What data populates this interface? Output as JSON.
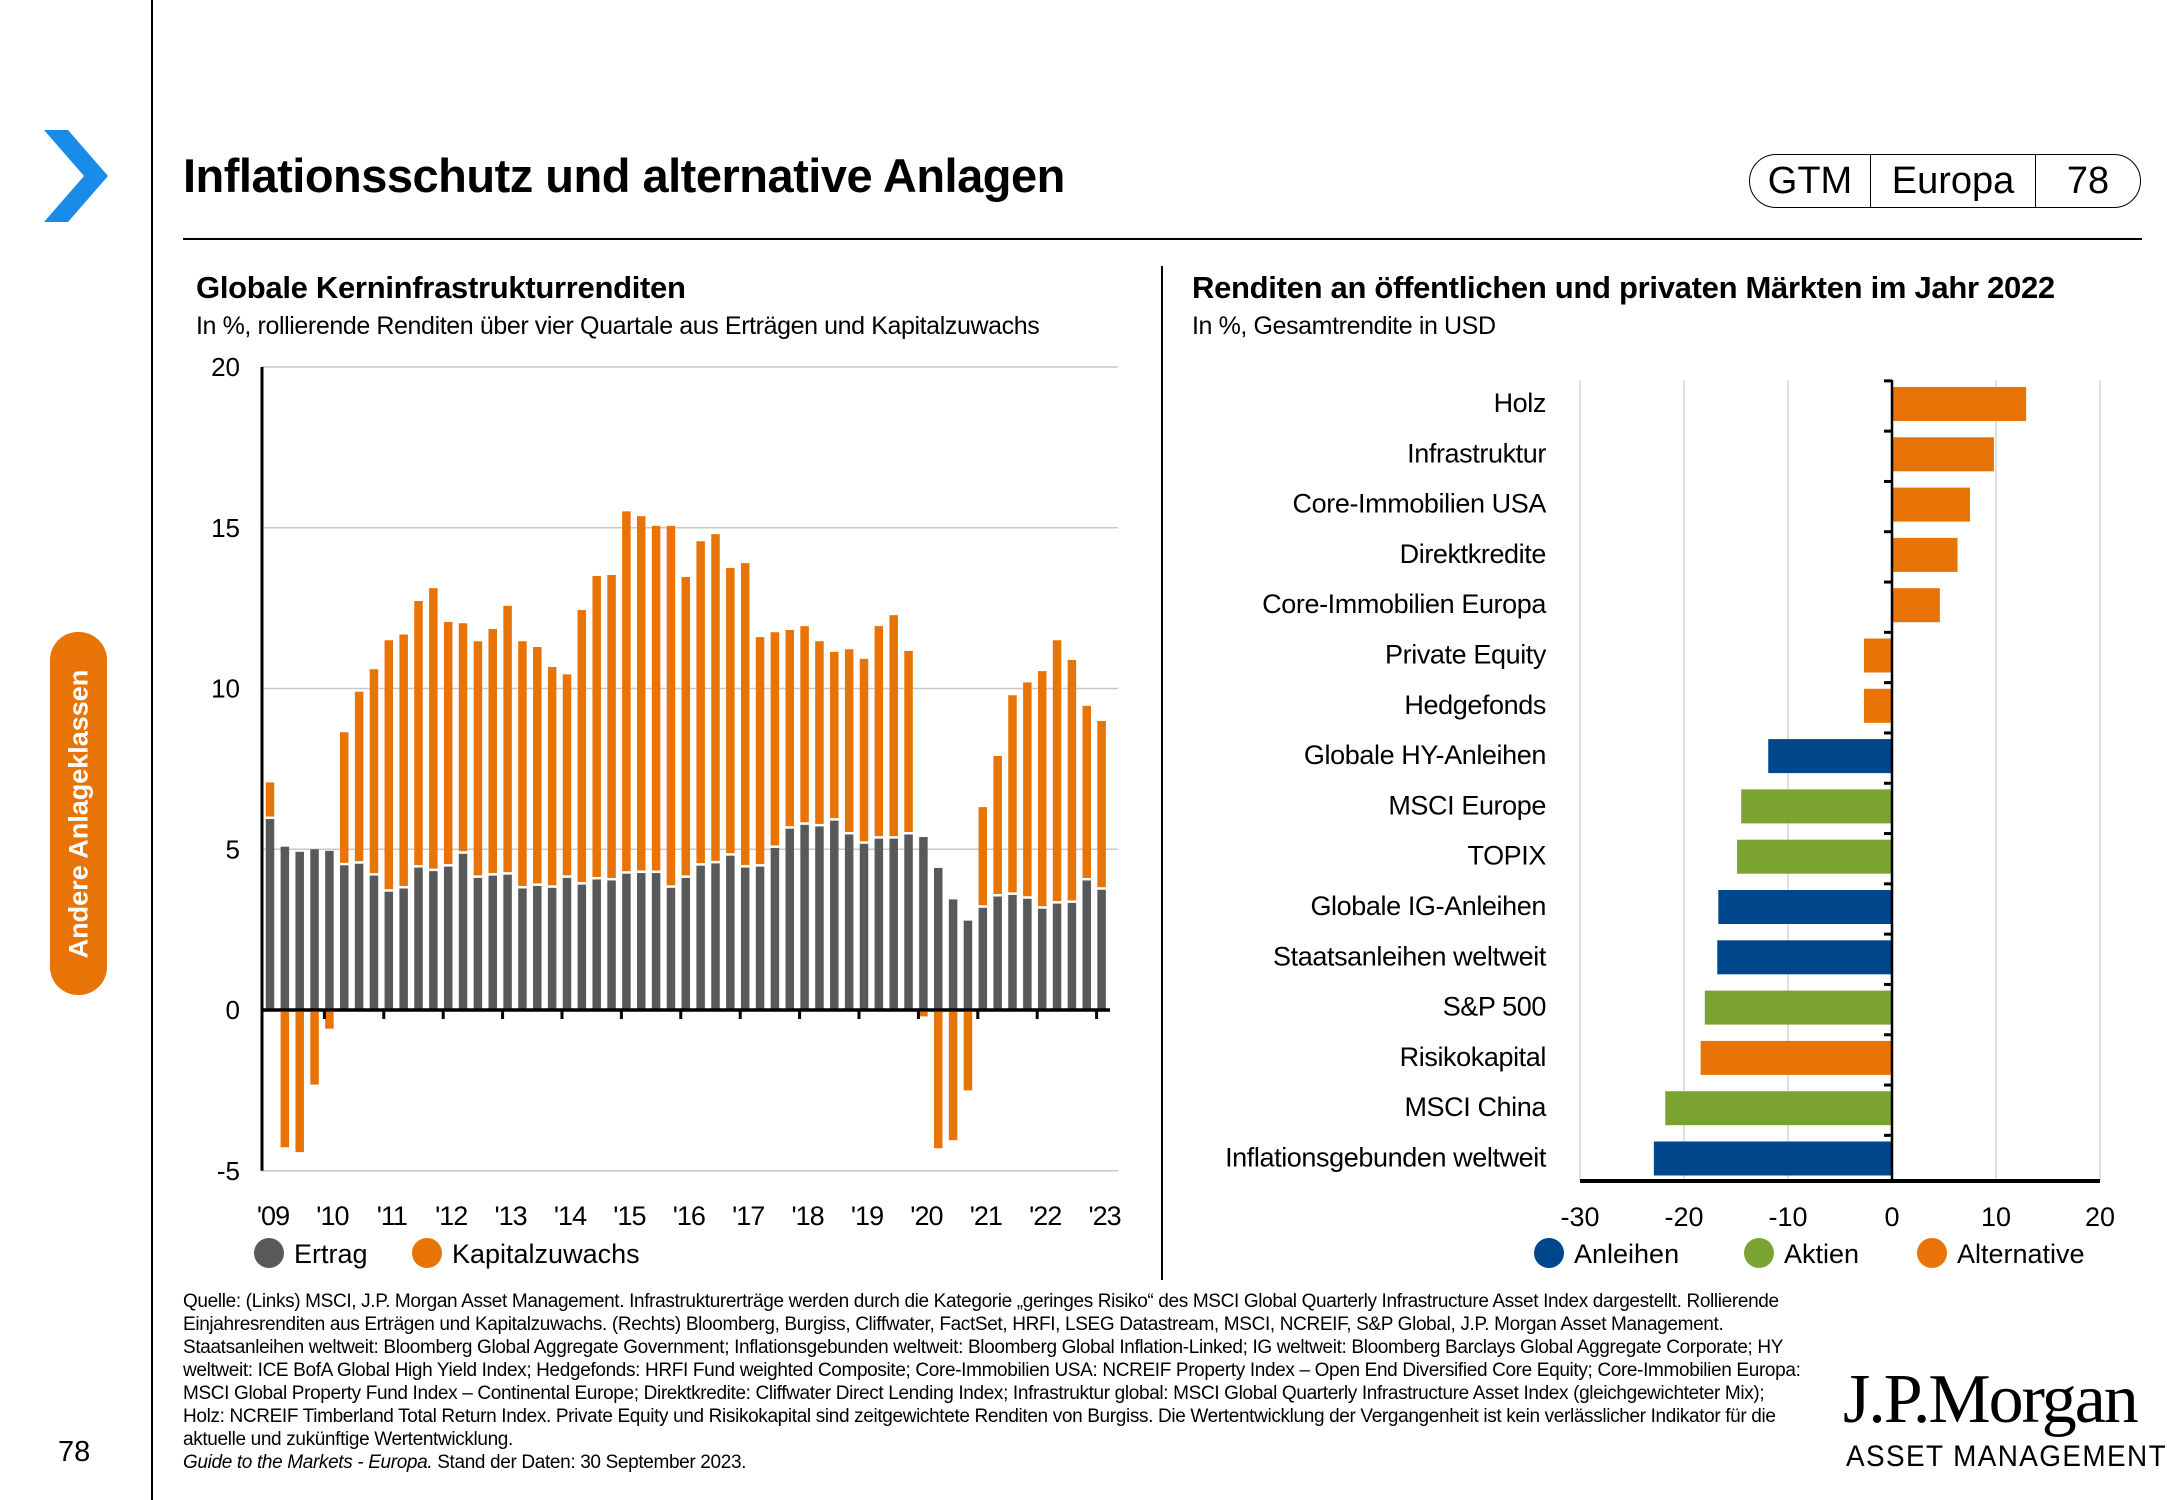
{
  "header": {
    "title": "Inflationsschutz und alternative Anlagen",
    "pill": [
      "GTM",
      "Europa",
      "78"
    ],
    "nav_icon": "chevron-right-icon",
    "accent_blue": "#1a8be8"
  },
  "sidebar": {
    "tab_label": "Andere Anlageklassen",
    "tab_color": "#e87306",
    "page_number": "78"
  },
  "colors": {
    "ertrag": "#58595b",
    "kapitalzuwachs": "#e87306",
    "anleihen": "#00468b",
    "aktien": "#7ba331",
    "alternative": "#e87306"
  },
  "footer": {
    "source": "Quelle: (Links) MSCI, J.P. Morgan Asset Management. Infrastrukturerträge werden durch die Kategorie „geringes Risiko“ des MSCI Global Quarterly Infrastructure Asset Index dargestellt. Rollierende Einjahresrenditen aus Erträgen und Kapitalzuwachs. (Rechts) Bloomberg, Burgiss, Cliffwater, FactSet, HRFI, LSEG Datastream, MSCI, NCREIF, S&P Global, J.P. Morgan Asset Management. Staatsanleihen weltweit: Bloomberg Global Aggregate Government; Inflationsgebunden weltweit: Bloomberg Global Inflation-Linked; IG weltweit: Bloomberg Barclays Global Aggregate Corporate; HY weltweit: ICE BofA Global High Yield Index; Hedgefonds: HRFI Fund weighted Composite; Core-Immobilien USA: NCREIF Property Index – Open End Diversified Core Equity; Core-Immobilien Europa: MSCI Global Property Fund Index – Continental Europe; Direktkredite: Cliffwater Direct Lending Index; Infrastruktur global: MSCI Global Quarterly Infrastructure Asset Index (gleichgewichteter Mix); Holz: NCREIF Timberland Total Return Index. Private Equity und Risikokapital sind zeitgewichtete Renditen von Burgiss. Die Wertentwicklung der Vergangenheit ist kein verlässlicher Indikator für die aktuelle und zukünftige Wertentwicklung.",
    "guide_italic": "Guide to the Markets - Europa.",
    "date_note": " Stand der Daten: 30 September 2023."
  },
  "logo": {
    "name": "J.P.Morgan",
    "sub": "ASSET MANAGEMENT"
  },
  "chart_data": [
    {
      "type": "bar",
      "stacked": true,
      "title": "Globale Kerninfrastrukturrenditen",
      "subtitle": "In %, rollierende Renditen über vier Quartale aus Erträgen und Kapitalzuwachs",
      "xlabel": "",
      "ylabel": "",
      "ylim": [
        -5,
        20
      ],
      "yticks": [
        20,
        15,
        10,
        5,
        0,
        -5
      ],
      "xtick_labels": [
        "'09",
        "'10",
        "'11",
        "'12",
        "'13",
        "'14",
        "'15",
        "'16",
        "'17",
        "'18",
        "'19",
        "'20",
        "'21",
        "'22",
        "'23"
      ],
      "bars_per_year": 4,
      "grid": true,
      "legend": "bottom-left",
      "series": [
        {
          "name": "Ertrag",
          "values": [
            5.94,
            5.08,
            4.92,
            5.0,
            4.95,
            4.5,
            4.55,
            4.18,
            3.68,
            3.78,
            4.43,
            4.32,
            4.46,
            4.86,
            4.11,
            4.18,
            4.21,
            3.78,
            3.86,
            3.8,
            4.11,
            3.9,
            4.06,
            4.03,
            4.24,
            4.26,
            4.26,
            3.8,
            4.11,
            4.49,
            4.56,
            4.8,
            4.43,
            4.46,
            5.04,
            5.64,
            5.76,
            5.71,
            5.89,
            5.46,
            5.17,
            5.33,
            5.33,
            5.46,
            5.38,
            4.42,
            3.44,
            2.78,
            3.18,
            3.53,
            3.58,
            3.46,
            3.15,
            3.31,
            3.33,
            4.03,
            3.74
          ]
        },
        {
          "name": "Kapitalzuwachs",
          "values": [
            1.14,
            -4.27,
            -4.42,
            -2.32,
            -0.58,
            4.14,
            5.35,
            6.42,
            7.82,
            7.9,
            8.29,
            8.8,
            7.61,
            7.17,
            7.36,
            7.67,
            8.36,
            7.69,
            7.43,
            6.87,
            6.33,
            8.54,
            9.44,
            9.5,
            11.27,
            11.1,
            10.8,
            11.26,
            9.36,
            10.09,
            10.24,
            8.95,
            9.47,
            7.14,
            6.71,
            6.18,
            6.18,
            5.76,
            5.25,
            5.76,
            5.75,
            6.61,
            6.95,
            5.71,
            -0.2,
            -4.3,
            -4.05,
            -2.5,
            3.13,
            4.37,
            6.21,
            6.73,
            7.39,
            8.19,
            7.56,
            5.43,
            5.25
          ]
        }
      ]
    },
    {
      "type": "bar",
      "orientation": "horizontal",
      "title": "Renditen an öffentlichen und privaten Märkten im Jahr 2022",
      "subtitle": "In %, Gesamtrendite in USD",
      "xlabel": "",
      "ylabel": "",
      "xlim": [
        -30,
        20
      ],
      "xticks": [
        -30,
        -20,
        -10,
        0,
        10,
        20
      ],
      "grid": true,
      "legend": "bottom",
      "legend_entries": [
        "Anleihen",
        "Aktien",
        "Alternative"
      ],
      "categories": [
        "Holz",
        "Infrastruktur",
        "Core-Immobilien USA",
        "Direktkredite",
        "Core-Immobilien Europa",
        "Private Equity",
        "Hedgefonds",
        "Globale HY-Anleihen",
        "MSCI Europe",
        "TOPIX",
        "Globale IG-Anleihen",
        "Staatsanleihen weltweit",
        "S&P 500",
        "Risikokapital",
        "MSCI China",
        "Inflationsgebunden weltweit"
      ],
      "values": [
        12.9,
        9.8,
        7.5,
        6.3,
        4.6,
        -2.7,
        -2.7,
        -11.9,
        -14.5,
        -14.9,
        -16.7,
        -16.8,
        -18.0,
        -18.4,
        -21.8,
        -22.9
      ],
      "groups": [
        "Alternative",
        "Alternative",
        "Alternative",
        "Alternative",
        "Alternative",
        "Alternative",
        "Alternative",
        "Anleihen",
        "Aktien",
        "Aktien",
        "Anleihen",
        "Anleihen",
        "Aktien",
        "Alternative",
        "Aktien",
        "Anleihen"
      ]
    }
  ]
}
